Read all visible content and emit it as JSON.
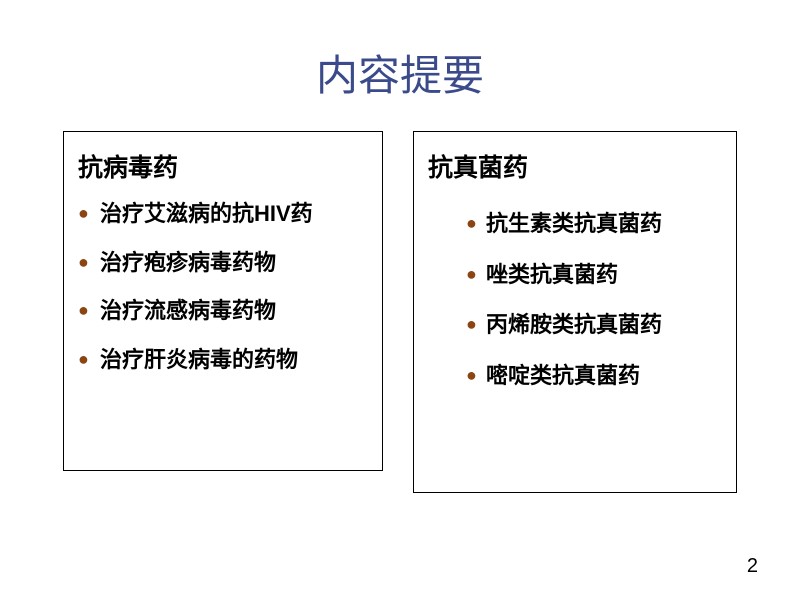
{
  "title": "内容提要",
  "leftBox": {
    "heading": "抗病毒药",
    "items": [
      "治疗艾滋病的抗HIV药",
      "治疗疱疹病毒药物",
      "治疗流感病毒药物",
      "治疗肝炎病毒的药物"
    ]
  },
  "rightBox": {
    "heading": "抗真菌药",
    "items": [
      "抗生素类抗真菌药",
      "唑类抗真菌药",
      "丙烯胺类抗真菌药",
      "嘧啶类抗真菌药"
    ]
  },
  "pageNumber": "2",
  "colors": {
    "titleColor": "#3a4a8a",
    "bulletColor": "#8b4513",
    "textColor": "#000000",
    "borderColor": "#000000",
    "backgroundColor": "#ffffff"
  }
}
